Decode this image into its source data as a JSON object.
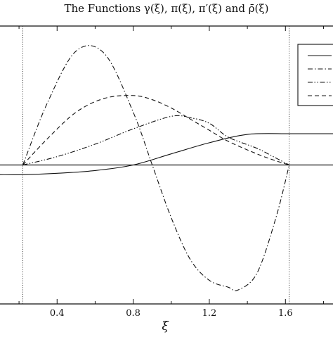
{
  "chart_data": {
    "type": "line",
    "title": "The Functions γ(ξ), π(ξ), π′(ξ) and ρ̄(ξ)",
    "xlabel": "ξ",
    "ylabel": "",
    "xlim": [
      0.1,
      1.85
    ],
    "ylim": [
      -1.0,
      1.0
    ],
    "grid": false,
    "legend_position": "top-right",
    "x_ticks": [
      0.4,
      0.8,
      1.2,
      1.6
    ],
    "x_tick_labels": [
      "0.4",
      "0.8",
      "1.2",
      "1.6"
    ],
    "reference_lines": {
      "vertical": [
        0.22,
        1.62
      ],
      "horizontal": [
        0.0
      ]
    },
    "series": [
      {
        "style": "solid",
        "x": [
          0.1,
          0.22,
          0.4,
          0.6,
          0.8,
          1.0,
          1.2,
          1.4,
          1.6,
          1.62,
          1.85
        ],
        "y": [
          -0.07,
          -0.07,
          -0.06,
          -0.04,
          0.0,
          0.08,
          0.16,
          0.22,
          0.225,
          0.225,
          0.225
        ]
      },
      {
        "style": "dash-dot",
        "x": [
          0.22,
          0.35,
          0.5,
          0.65,
          0.8,
          0.9,
          1.0,
          1.1,
          1.2,
          1.3,
          1.35,
          1.45,
          1.55,
          1.62
        ],
        "y": [
          0.0,
          0.45,
          0.82,
          0.8,
          0.38,
          0.0,
          -0.38,
          -0.68,
          -0.83,
          -0.88,
          -0.9,
          -0.78,
          -0.38,
          0.0
        ]
      },
      {
        "style": "dash-dot-dot",
        "x": [
          0.22,
          0.4,
          0.6,
          0.8,
          1.0,
          1.1,
          1.2,
          1.3,
          1.45,
          1.55,
          1.62
        ],
        "y": [
          0.0,
          0.06,
          0.15,
          0.26,
          0.35,
          0.34,
          0.3,
          0.2,
          0.12,
          0.05,
          0.0
        ]
      },
      {
        "style": "dashed",
        "x": [
          0.22,
          0.35,
          0.5,
          0.65,
          0.8,
          0.9,
          1.0,
          1.1,
          1.2,
          1.3,
          1.45,
          1.55,
          1.62
        ],
        "y": [
          0.0,
          0.19,
          0.38,
          0.48,
          0.5,
          0.47,
          0.41,
          0.33,
          0.25,
          0.17,
          0.08,
          0.03,
          0.0
        ]
      }
    ]
  }
}
